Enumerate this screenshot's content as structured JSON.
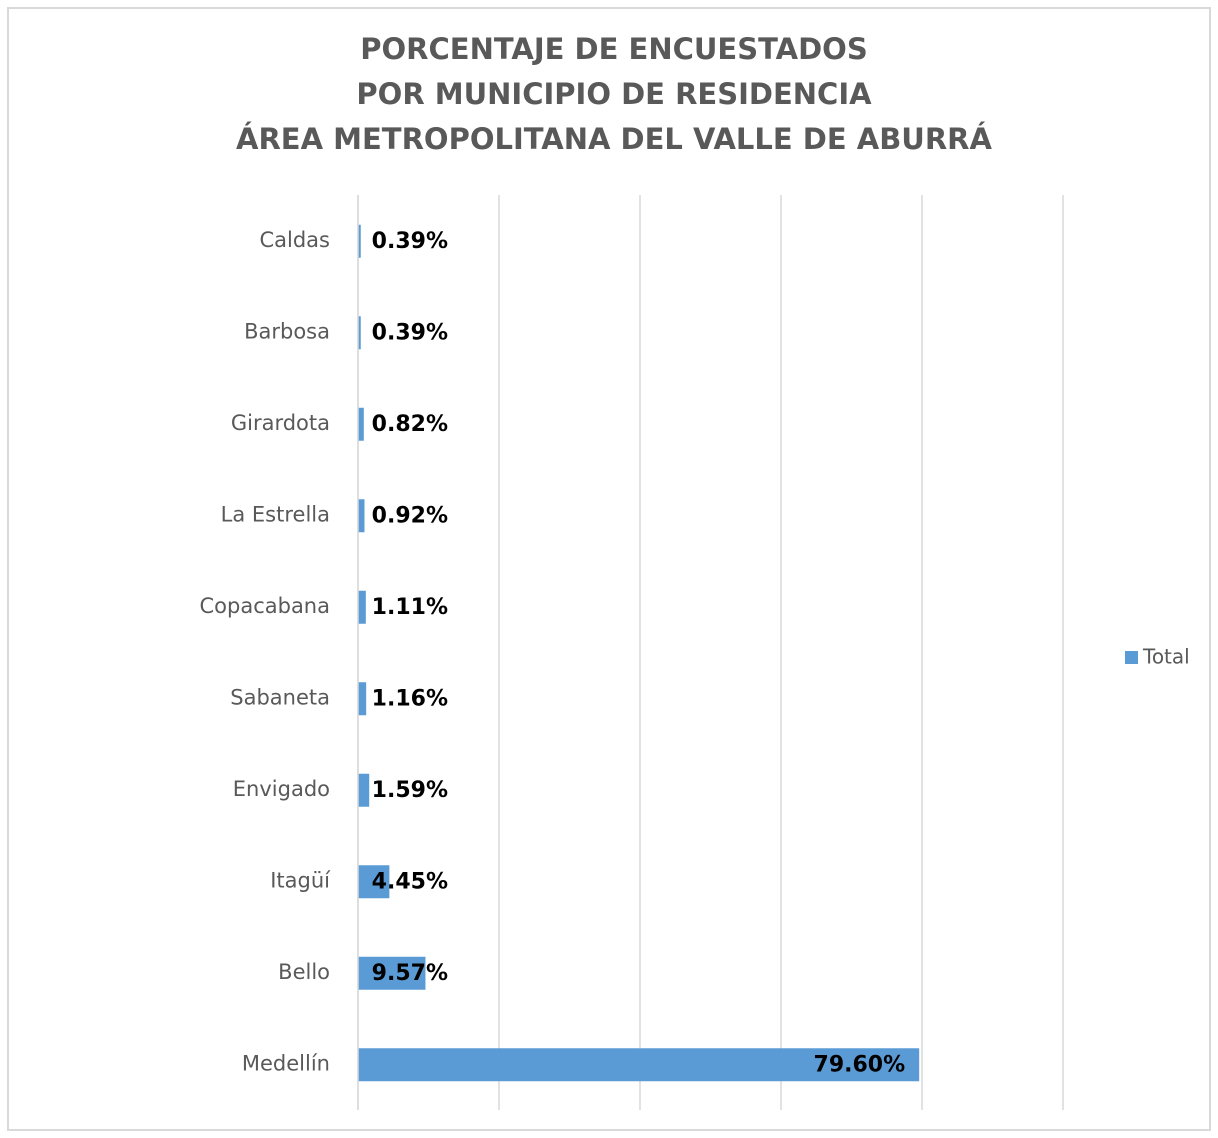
{
  "chart_data": {
    "type": "barh",
    "title": [
      "PORCENTAJE DE ENCUESTADOS",
      "POR MUNICIPIO DE RESIDENCIA",
      "ÁREA METROPOLITANA DEL VALLE DE ABURRÁ"
    ],
    "categories": [
      "Caldas",
      "Barbosa",
      "Girardota",
      "La Estrella",
      "Copacabana",
      "Sabaneta",
      "Envigado",
      "Itagüí",
      "Bello",
      "Medellín"
    ],
    "series": [
      {
        "name": "Total",
        "color": "#5b9bd5",
        "values": [
          0.39,
          0.39,
          0.82,
          0.92,
          1.11,
          1.16,
          1.59,
          4.45,
          9.57,
          79.6
        ],
        "value_labels": [
          "0.39%",
          "0.39%",
          "0.82%",
          "0.92%",
          "1.11%",
          "1.16%",
          "1.59%",
          "4.45%",
          "9.57%",
          "79.60%"
        ]
      }
    ],
    "xlim": [
      0,
      100
    ],
    "xticks": [
      0,
      20,
      40,
      60,
      80,
      100
    ],
    "grid": true,
    "legend": "right"
  }
}
